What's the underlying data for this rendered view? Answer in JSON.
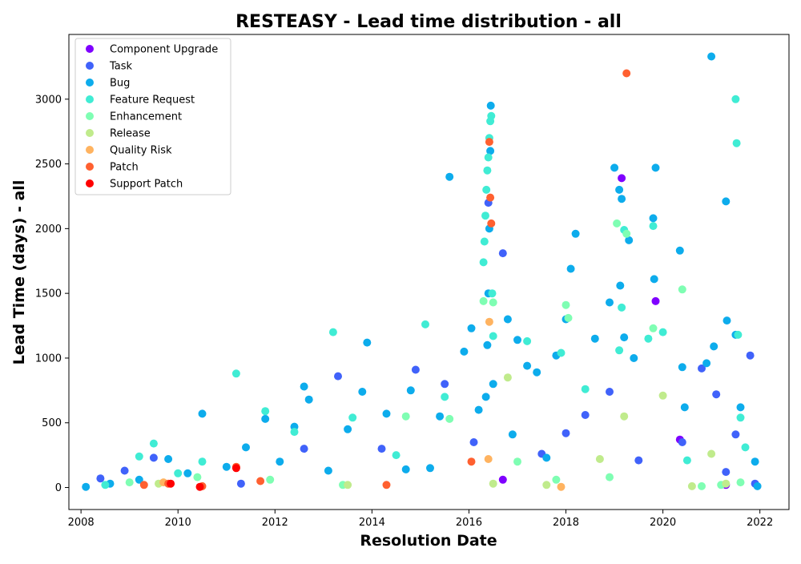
{
  "chart_data": {
    "type": "scatter",
    "title": "RESTEASY - Lead time distribution - all",
    "xlabel": "Resolution Date",
    "ylabel": "Lead Time (days) - all",
    "xlim": [
      2007.75,
      2022.6
    ],
    "ylim": [
      -170,
      3500
    ],
    "x_ticks": [
      2008,
      2010,
      2012,
      2014,
      2016,
      2018,
      2020,
      2022
    ],
    "x_tick_labels": [
      "2008",
      "2010",
      "2012",
      "2014",
      "2016",
      "2018",
      "2020",
      "2022"
    ],
    "y_ticks": [
      0,
      500,
      1000,
      1500,
      2000,
      2500,
      3000
    ],
    "y_tick_labels": [
      "0",
      "500",
      "1000",
      "1500",
      "2000",
      "2500",
      "3000"
    ],
    "grid": false,
    "legend_position": "top-left",
    "series": [
      {
        "name": "Component Upgrade",
        "color": "#7f00ff",
        "points": [
          [
            2019.15,
            2390
          ],
          [
            2019.85,
            1440
          ],
          [
            2020.35,
            370
          ],
          [
            2021.3,
            20
          ],
          [
            2016.7,
            60
          ]
        ]
      },
      {
        "name": "Task",
        "color": "#4062fa",
        "points": [
          [
            2008.4,
            70
          ],
          [
            2008.9,
            130
          ],
          [
            2009.5,
            230
          ],
          [
            2011.3,
            30
          ],
          [
            2012.6,
            300
          ],
          [
            2013.3,
            860
          ],
          [
            2014.2,
            300
          ],
          [
            2014.9,
            910
          ],
          [
            2015.5,
            800
          ],
          [
            2016.1,
            350
          ],
          [
            2016.7,
            1810
          ],
          [
            2016.4,
            2200
          ],
          [
            2017.5,
            260
          ],
          [
            2018.0,
            420
          ],
          [
            2018.4,
            560
          ],
          [
            2018.9,
            740
          ],
          [
            2019.5,
            210
          ],
          [
            2020.4,
            350
          ],
          [
            2020.8,
            920
          ],
          [
            2021.1,
            720
          ],
          [
            2021.3,
            120
          ],
          [
            2021.5,
            410
          ],
          [
            2021.8,
            1020
          ],
          [
            2021.9,
            30
          ]
        ]
      },
      {
        "name": "Bug",
        "color": "#0dacec",
        "points": [
          [
            2008.1,
            5
          ],
          [
            2008.6,
            30
          ],
          [
            2009.2,
            60
          ],
          [
            2009.8,
            220
          ],
          [
            2010.2,
            110
          ],
          [
            2010.5,
            570
          ],
          [
            2011.0,
            160
          ],
          [
            2011.4,
            310
          ],
          [
            2011.8,
            530
          ],
          [
            2012.1,
            200
          ],
          [
            2012.4,
            470
          ],
          [
            2012.6,
            780
          ],
          [
            2012.7,
            680
          ],
          [
            2013.1,
            130
          ],
          [
            2013.5,
            450
          ],
          [
            2013.8,
            740
          ],
          [
            2013.9,
            1120
          ],
          [
            2014.3,
            570
          ],
          [
            2014.7,
            140
          ],
          [
            2014.8,
            750
          ],
          [
            2015.2,
            150
          ],
          [
            2015.4,
            550
          ],
          [
            2015.6,
            2400
          ],
          [
            2015.9,
            1050
          ],
          [
            2016.05,
            1230
          ],
          [
            2016.2,
            600
          ],
          [
            2016.35,
            700
          ],
          [
            2016.38,
            1100
          ],
          [
            2016.4,
            1500
          ],
          [
            2016.42,
            2000
          ],
          [
            2016.44,
            2600
          ],
          [
            2016.45,
            2950
          ],
          [
            2016.5,
            800
          ],
          [
            2016.8,
            1300
          ],
          [
            2016.9,
            410
          ],
          [
            2017.0,
            1140
          ],
          [
            2017.2,
            940
          ],
          [
            2017.4,
            890
          ],
          [
            2017.6,
            230
          ],
          [
            2017.8,
            1020
          ],
          [
            2018.0,
            1300
          ],
          [
            2018.1,
            1690
          ],
          [
            2018.2,
            1960
          ],
          [
            2018.6,
            1150
          ],
          [
            2018.9,
            1430
          ],
          [
            2019.0,
            2470
          ],
          [
            2019.1,
            2300
          ],
          [
            2019.12,
            1560
          ],
          [
            2019.15,
            2230
          ],
          [
            2019.2,
            1160
          ],
          [
            2019.3,
            1910
          ],
          [
            2019.4,
            1000
          ],
          [
            2019.8,
            2080
          ],
          [
            2019.82,
            1610
          ],
          [
            2019.85,
            2470
          ],
          [
            2020.35,
            1830
          ],
          [
            2020.4,
            930
          ],
          [
            2020.45,
            620
          ],
          [
            2020.9,
            960
          ],
          [
            2021.0,
            3330
          ],
          [
            2021.05,
            1090
          ],
          [
            2021.3,
            2210
          ],
          [
            2021.32,
            1290
          ],
          [
            2021.5,
            1180
          ],
          [
            2021.6,
            620
          ],
          [
            2021.9,
            200
          ],
          [
            2021.95,
            10
          ]
        ]
      },
      {
        "name": "Feature Request",
        "color": "#40ecd4",
        "points": [
          [
            2008.5,
            20
          ],
          [
            2009.2,
            240
          ],
          [
            2009.5,
            340
          ],
          [
            2010.0,
            110
          ],
          [
            2010.5,
            200
          ],
          [
            2011.2,
            880
          ],
          [
            2011.8,
            590
          ],
          [
            2012.4,
            430
          ],
          [
            2013.2,
            1200
          ],
          [
            2013.6,
            540
          ],
          [
            2014.5,
            250
          ],
          [
            2015.1,
            1260
          ],
          [
            2015.5,
            700
          ],
          [
            2016.3,
            1740
          ],
          [
            2016.32,
            1900
          ],
          [
            2016.34,
            2100
          ],
          [
            2016.36,
            2300
          ],
          [
            2016.38,
            2450
          ],
          [
            2016.4,
            2550
          ],
          [
            2016.42,
            2700
          ],
          [
            2016.44,
            2830
          ],
          [
            2016.46,
            2870
          ],
          [
            2016.48,
            1500
          ],
          [
            2016.5,
            1170
          ],
          [
            2017.2,
            1130
          ],
          [
            2017.9,
            1040
          ],
          [
            2018.4,
            760
          ],
          [
            2019.1,
            1060
          ],
          [
            2019.15,
            1390
          ],
          [
            2019.2,
            1990
          ],
          [
            2019.7,
            1150
          ],
          [
            2019.8,
            2020
          ],
          [
            2020.0,
            1200
          ],
          [
            2020.5,
            210
          ],
          [
            2021.5,
            3000
          ],
          [
            2021.52,
            2660
          ],
          [
            2021.55,
            1180
          ],
          [
            2021.6,
            540
          ],
          [
            2021.7,
            310
          ]
        ]
      },
      {
        "name": "Enhancement",
        "color": "#7ffeb3",
        "points": [
          [
            2009.0,
            40
          ],
          [
            2010.4,
            80
          ],
          [
            2011.9,
            60
          ],
          [
            2013.4,
            20
          ],
          [
            2014.7,
            550
          ],
          [
            2015.6,
            530
          ],
          [
            2016.3,
            1440
          ],
          [
            2016.5,
            1430
          ],
          [
            2017.0,
            200
          ],
          [
            2017.8,
            60
          ],
          [
            2018.0,
            1410
          ],
          [
            2018.05,
            1310
          ],
          [
            2018.9,
            80
          ],
          [
            2019.05,
            2040
          ],
          [
            2019.25,
            1960
          ],
          [
            2019.8,
            1230
          ],
          [
            2020.4,
            1530
          ],
          [
            2020.8,
            10
          ],
          [
            2021.2,
            20
          ],
          [
            2021.6,
            40
          ]
        ]
      },
      {
        "name": "Release",
        "color": "#c0eb8c",
        "points": [
          [
            2009.6,
            30
          ],
          [
            2013.5,
            20
          ],
          [
            2016.5,
            30
          ],
          [
            2016.8,
            850
          ],
          [
            2017.6,
            20
          ],
          [
            2018.7,
            220
          ],
          [
            2019.2,
            550
          ],
          [
            2020.0,
            710
          ],
          [
            2020.6,
            10
          ],
          [
            2021.0,
            260
          ],
          [
            2021.3,
            30
          ]
        ]
      },
      {
        "name": "Quality Risk",
        "color": "#ffb360",
        "points": [
          [
            2009.7,
            40
          ],
          [
            2016.4,
            220
          ],
          [
            2016.42,
            1280
          ],
          [
            2017.9,
            5
          ]
        ]
      },
      {
        "name": "Patch",
        "color": "#ff6030",
        "points": [
          [
            2009.3,
            20
          ],
          [
            2009.8,
            30
          ],
          [
            2010.5,
            10
          ],
          [
            2011.2,
            160
          ],
          [
            2011.7,
            50
          ],
          [
            2014.3,
            20
          ],
          [
            2016.05,
            200
          ],
          [
            2016.42,
            2670
          ],
          [
            2016.44,
            2240
          ],
          [
            2016.46,
            2040
          ],
          [
            2019.25,
            3200
          ]
        ]
      },
      {
        "name": "Support Patch",
        "color": "#ff0000",
        "points": [
          [
            2009.85,
            30
          ],
          [
            2011.2,
            150
          ],
          [
            2010.45,
            5
          ]
        ]
      }
    ]
  }
}
